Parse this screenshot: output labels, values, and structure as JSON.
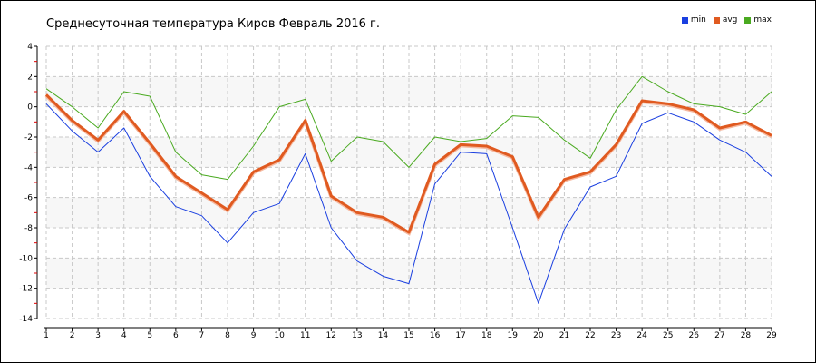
{
  "chart_data": {
    "type": "line",
    "title": "Среднесуточная температура Киров  Февраль 2016 г.",
    "xlabel": "",
    "ylabel": "",
    "x": [
      1,
      2,
      3,
      4,
      5,
      6,
      7,
      8,
      9,
      10,
      11,
      12,
      13,
      14,
      15,
      16,
      17,
      18,
      19,
      20,
      21,
      22,
      23,
      24,
      25,
      26,
      27,
      28,
      29
    ],
    "ylim": [
      -14,
      4
    ],
    "yticks": [
      4,
      2,
      0,
      -2,
      -4,
      -6,
      -8,
      -10,
      -12,
      -14
    ],
    "grid": true,
    "legend_position": "top-right",
    "series": [
      {
        "name": "min",
        "color": "#1a3fe0",
        "values": [
          0.2,
          -1.6,
          -3.0,
          -1.4,
          -4.6,
          -6.6,
          -7.2,
          -9.0,
          -7.0,
          -6.4,
          -3.1,
          -8.0,
          -10.2,
          -11.2,
          -11.7,
          -5.1,
          -3.0,
          -3.1,
          -8.0,
          -13.0,
          -8.1,
          -5.3,
          -4.6,
          -1.1,
          -0.4,
          -1.0,
          -2.2,
          -3.0,
          -4.6
        ]
      },
      {
        "name": "avg",
        "color": "#e05a20",
        "values": [
          0.8,
          -0.9,
          -2.2,
          -0.3,
          -2.4,
          -4.6,
          -5.7,
          -6.8,
          -4.3,
          -3.5,
          -0.9,
          -5.9,
          -7.0,
          -7.3,
          -8.3,
          -3.8,
          -2.5,
          -2.6,
          -3.3,
          -7.3,
          -4.8,
          -4.3,
          -2.5,
          0.4,
          0.2,
          -0.2,
          -1.4,
          -1.0,
          -1.9
        ]
      },
      {
        "name": "max",
        "color": "#4aaa20",
        "values": [
          1.2,
          0.0,
          -1.4,
          1.0,
          0.7,
          -3.0,
          -4.5,
          -4.8,
          -2.6,
          0.0,
          0.5,
          -3.6,
          -2.0,
          -2.3,
          -4.0,
          -2.0,
          -2.3,
          -2.1,
          -0.6,
          -0.7,
          -2.2,
          -3.4,
          -0.2,
          2.0,
          1.0,
          0.2,
          0.0,
          -0.5,
          1.0
        ]
      }
    ]
  }
}
